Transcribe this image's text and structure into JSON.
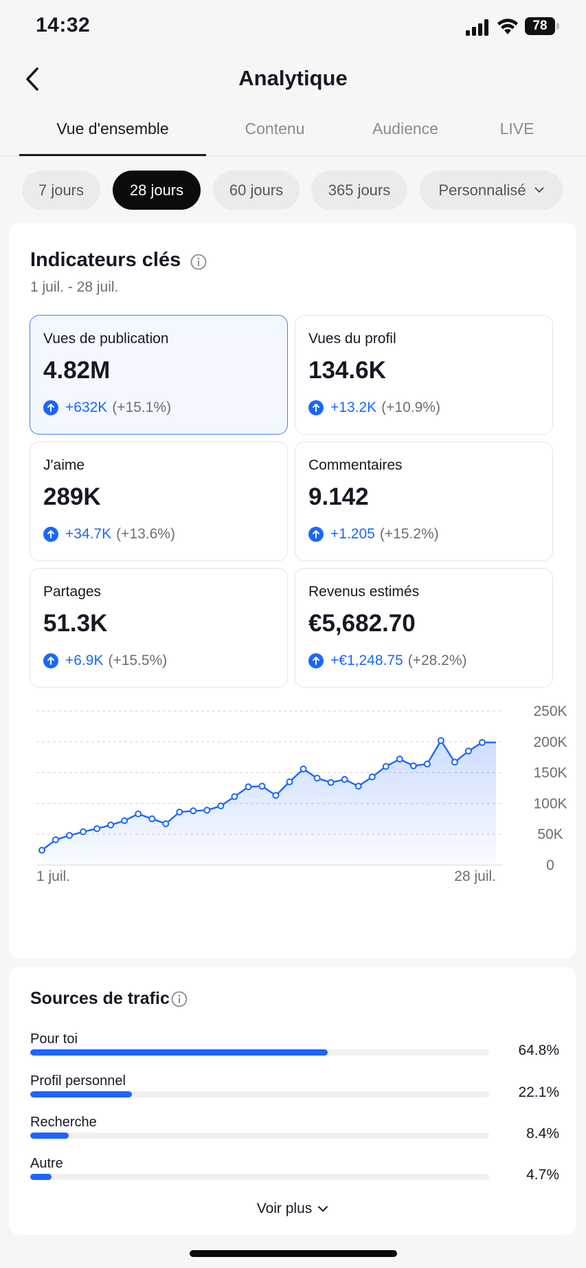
{
  "status_bar": {
    "time": "14:32",
    "battery": "78"
  },
  "header": {
    "title": "Analytique"
  },
  "tabs": [
    {
      "label": "Vue d'ensemble",
      "active": true
    },
    {
      "label": "Contenu",
      "active": false
    },
    {
      "label": "Audience",
      "active": false
    },
    {
      "label": "LIVE",
      "active": false
    }
  ],
  "periods": [
    {
      "label": "7 jours",
      "active": false
    },
    {
      "label": "28 jours",
      "active": true
    },
    {
      "label": "60 jours",
      "active": false
    },
    {
      "label": "365 jours",
      "active": false
    },
    {
      "label": "Personnalisé",
      "active": false
    }
  ],
  "key_metrics": {
    "title": "Indicateurs clés",
    "date_range": "1 juil. - 28 juil.",
    "items": [
      {
        "label": "Vues de publication",
        "value": "4.82M",
        "change": "+632K",
        "pct": "(+15.1%)",
        "selected": true
      },
      {
        "label": "Vues du profil",
        "value": "134.6K",
        "change": "+13.2K",
        "pct": "(+10.9%)",
        "selected": false
      },
      {
        "label": "J'aime",
        "value": "289K",
        "change": "+34.7K",
        "pct": "(+13.6%)",
        "selected": false
      },
      {
        "label": "Commentaires",
        "value": "9.142",
        "change": "+1.205",
        "pct": "(+15.2%)",
        "selected": false
      },
      {
        "label": "Partages",
        "value": "51.3K",
        "change": "+6.9K",
        "pct": "(+15.5%)",
        "selected": false
      },
      {
        "label": "Revenus estimés",
        "value": "€5,682.70",
        "change": "+€1,248.75",
        "pct": "(+28.2%)",
        "selected": false
      }
    ]
  },
  "chart_data": {
    "type": "area",
    "title": "",
    "xlabel": "",
    "ylabel": "",
    "x_tick_labels": [
      "1 juil.",
      "28 juil."
    ],
    "y_tick_labels": [
      "250K",
      "200K",
      "150K",
      "100K",
      "50K",
      "0"
    ],
    "ylim": [
      0,
      250000
    ],
    "grid": true,
    "color": "#1a66ff",
    "x": [
      1,
      2,
      3,
      4,
      5,
      6,
      7,
      8,
      9,
      10,
      11,
      12,
      13,
      14,
      15,
      16,
      17,
      18,
      19,
      20,
      21,
      22,
      23,
      24,
      25,
      26,
      27,
      28,
      29,
      30,
      31,
      32,
      33,
      34
    ],
    "values": [
      24000,
      41000,
      48000,
      54000,
      59000,
      65000,
      72000,
      83000,
      75000,
      67000,
      86000,
      88000,
      89000,
      96000,
      111000,
      127000,
      128000,
      113000,
      135000,
      156000,
      141000,
      134000,
      139000,
      128000,
      143000,
      160000,
      172000,
      161000,
      164000,
      202000,
      167000,
      185000,
      199000,
      199000
    ]
  },
  "traffic": {
    "title": "Sources de trafic",
    "items": [
      {
        "label": "Pour toi",
        "pct": "64.8%",
        "value": 64.8
      },
      {
        "label": "Profil personnel",
        "pct": "22.1%",
        "value": 22.1
      },
      {
        "label": "Recherche",
        "pct": "8.4%",
        "value": 8.4
      },
      {
        "label": "Autre",
        "pct": "4.7%",
        "value": 4.7
      }
    ],
    "see_more": "Voir plus"
  },
  "colors": {
    "accent": "#1a66ff",
    "selected_border": "#3b82f6",
    "chip_active": "#0b0b0c"
  }
}
